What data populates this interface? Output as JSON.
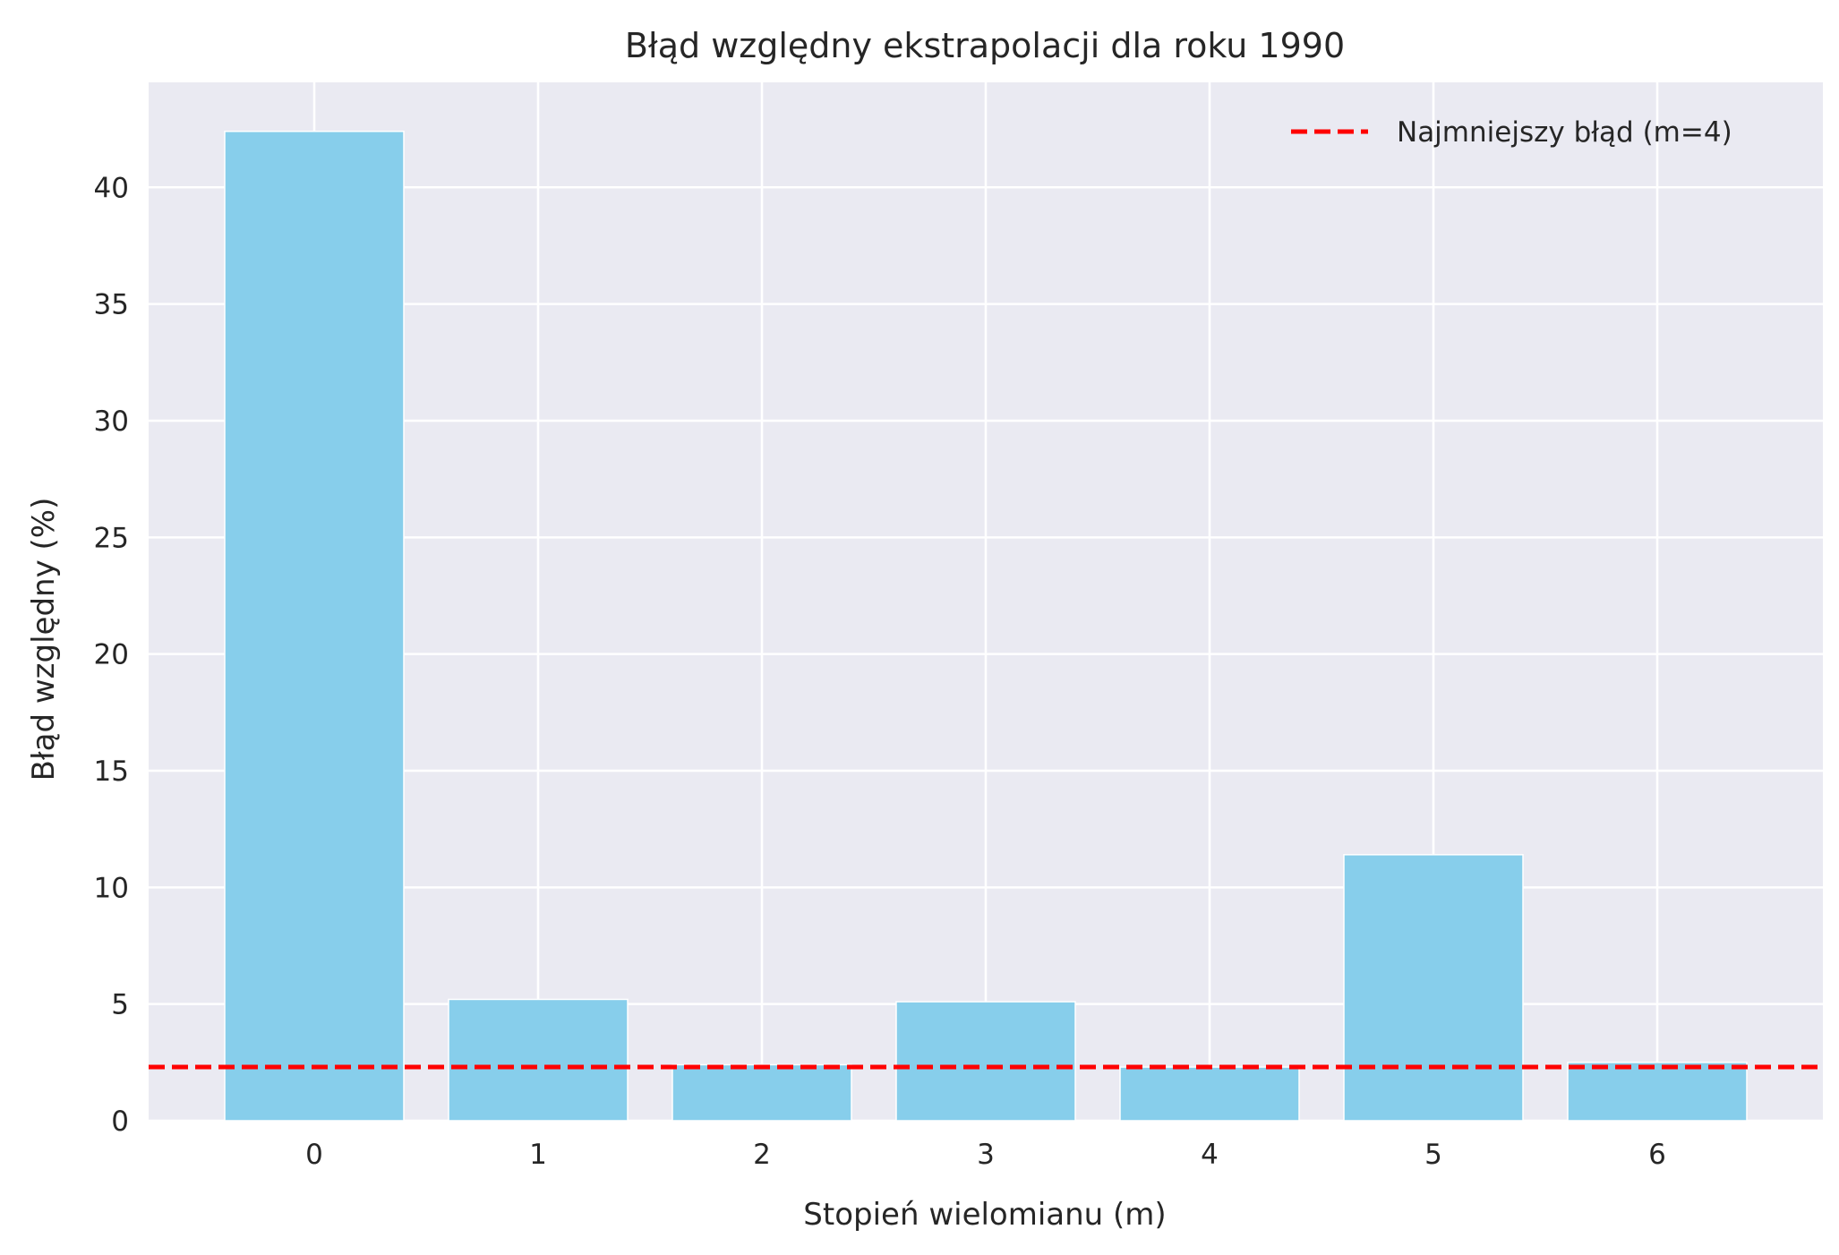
{
  "chart_data": {
    "type": "bar",
    "title": "Błąd względny ekstrapolacji dla roku 1990",
    "xlabel": "Stopień wielomianu (m)",
    "ylabel": "Błąd względny (%)",
    "categories": [
      "0",
      "1",
      "2",
      "3",
      "4",
      "5",
      "6"
    ],
    "values": [
      42.4,
      5.2,
      2.4,
      5.1,
      2.3,
      11.4,
      2.5
    ],
    "yticks": [
      0,
      5,
      10,
      15,
      20,
      25,
      30,
      35,
      40
    ],
    "ytick_labels": [
      "0",
      "5",
      "10",
      "15",
      "20",
      "25",
      "30",
      "35",
      "40"
    ],
    "ylim": [
      0,
      44.5
    ],
    "xlim": [
      -0.74,
      6.74
    ],
    "grid": true,
    "bar_color": "#87CEEB",
    "background_color": "#EAEAF2",
    "reference_line": {
      "value": 2.3,
      "label": "Najmniejszy błąd (m=4)",
      "color": "#FF0000",
      "style": "dashed"
    },
    "legend": {
      "placement": "top-right"
    }
  }
}
